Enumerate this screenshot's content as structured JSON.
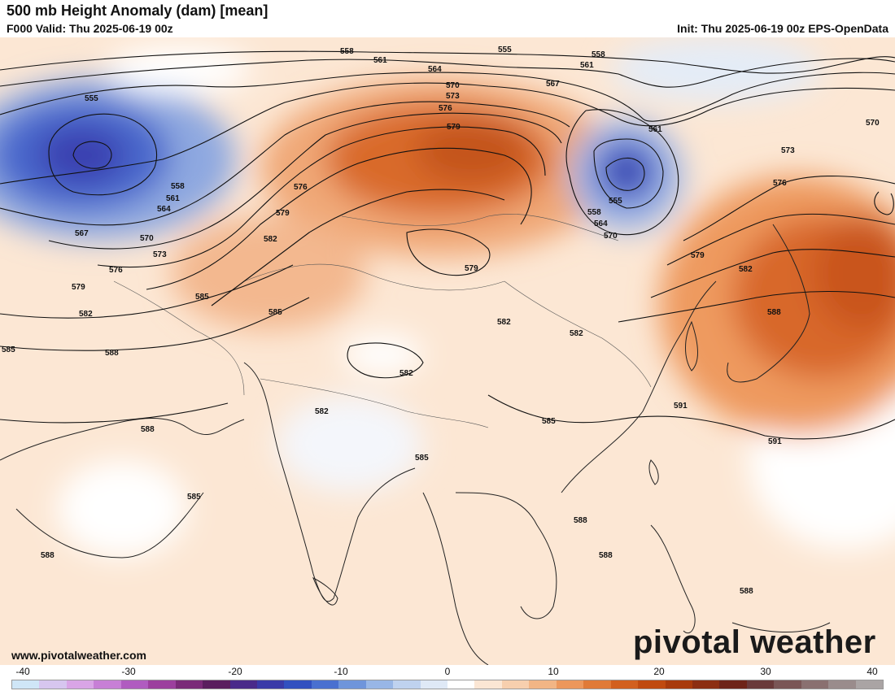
{
  "header": {
    "title": "500 mb Height Anomaly (dam) [mean]",
    "valid": "F000 Valid: Thu 2025-06-19 00z",
    "init": "Init: Thu 2025-06-19 00z EPS-OpenData"
  },
  "footer": {
    "website": "www.pivotalweather.com",
    "logo": "pivotal weather"
  },
  "colorbar": {
    "ticks": [
      "-40",
      "-30",
      "-20",
      "-10",
      "0",
      "10",
      "20",
      "30",
      "40"
    ],
    "colors": [
      "#cfe6f7",
      "#d7c6ef",
      "#d9a5e6",
      "#c77fd6",
      "#b05cc0",
      "#9c3f9e",
      "#7a2a78",
      "#5a1e5e",
      "#4a2a8a",
      "#3a3aa8",
      "#3250c0",
      "#4a70d0",
      "#6f95db",
      "#98b6e6",
      "#bfd2ef",
      "#dfe9f6",
      "#ffffff",
      "#fbe6d4",
      "#f7cfae",
      "#f2b585",
      "#ec975c",
      "#e07a38",
      "#d2601f",
      "#c04a10",
      "#a83a0c",
      "#8c2e12",
      "#6e2418",
      "#6a3a3a",
      "#7a5656",
      "#8a7070",
      "#9a8c8c",
      "#aaa4a4"
    ]
  },
  "contour_labels": [
    "555",
    "558",
    "561",
    "564",
    "567",
    "570",
    "573",
    "576",
    "579",
    "582",
    "585",
    "588",
    "591"
  ]
}
